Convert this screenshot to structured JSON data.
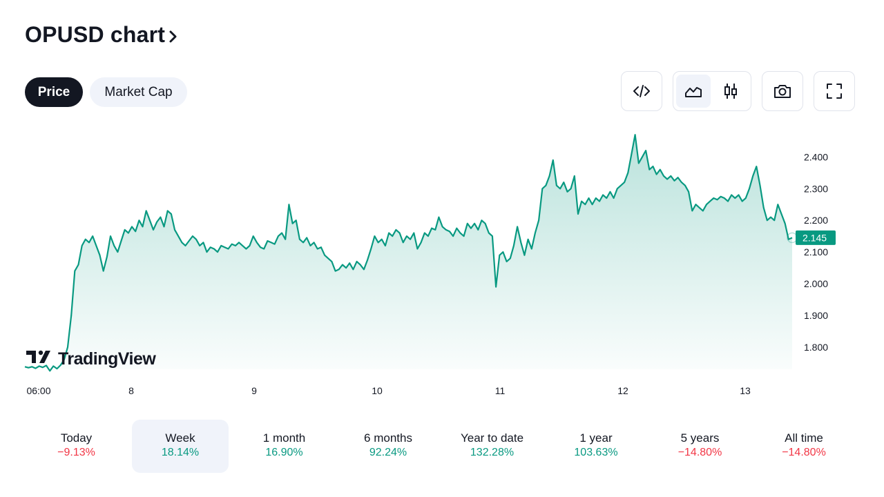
{
  "header": {
    "title": "OPUSD chart",
    "chevron_icon": "chevron-right-icon"
  },
  "tabs": [
    {
      "label": "Price",
      "active": true
    },
    {
      "label": "Market Cap",
      "active": false
    }
  ],
  "toolbar": {
    "embed_icon": "code-icon",
    "area_chart_icon": "area-chart-icon",
    "candles_icon": "candlestick-icon",
    "snapshot_icon": "camera-icon",
    "fullscreen_icon": "fullscreen-icon",
    "active_chart_style": "area"
  },
  "watermark": {
    "text": "TradingView"
  },
  "colors": {
    "line": "#089981",
    "negative": "#f23645",
    "dark": "#131722",
    "active_bg": "#f0f3fa"
  },
  "chart_data": {
    "type": "area",
    "x_tick_labels": [
      "06:00",
      "8",
      "9",
      "10",
      "11",
      "12",
      "13"
    ],
    "y_tick_labels": [
      "2.400",
      "2.300",
      "2.200",
      "2.100",
      "2.000",
      "1.900",
      "1.800"
    ],
    "ylim": [
      1.73,
      2.49
    ],
    "last_value": "2.145",
    "grid": false,
    "series": [
      {
        "values": [
          1.738,
          1.735,
          1.738,
          1.733,
          1.74,
          1.736,
          1.742,
          1.725,
          1.74,
          1.732,
          1.743,
          1.76,
          1.8,
          1.9,
          2.04,
          2.06,
          2.12,
          2.14,
          2.13,
          2.15,
          2.12,
          2.09,
          2.04,
          2.085,
          2.15,
          2.12,
          2.1,
          2.135,
          2.17,
          2.16,
          2.18,
          2.165,
          2.2,
          2.18,
          2.23,
          2.2,
          2.17,
          2.195,
          2.21,
          2.18,
          2.23,
          2.22,
          2.17,
          2.15,
          2.13,
          2.12,
          2.135,
          2.15,
          2.14,
          2.12,
          2.13,
          2.1,
          2.115,
          2.11,
          2.1,
          2.12,
          2.115,
          2.11,
          2.125,
          2.12,
          2.13,
          2.12,
          2.11,
          2.12,
          2.15,
          2.13,
          2.115,
          2.11,
          2.135,
          2.13,
          2.125,
          2.15,
          2.16,
          2.14,
          2.25,
          2.19,
          2.2,
          2.14,
          2.13,
          2.145,
          2.12,
          2.13,
          2.11,
          2.115,
          2.09,
          2.08,
          2.07,
          2.04,
          2.045,
          2.06,
          2.05,
          2.065,
          2.045,
          2.07,
          2.06,
          2.045,
          2.075,
          2.11,
          2.15,
          2.13,
          2.14,
          2.12,
          2.16,
          2.15,
          2.17,
          2.16,
          2.13,
          2.15,
          2.14,
          2.16,
          2.11,
          2.13,
          2.16,
          2.15,
          2.175,
          2.17,
          2.21,
          2.18,
          2.17,
          2.165,
          2.15,
          2.175,
          2.16,
          2.15,
          2.19,
          2.175,
          2.19,
          2.17,
          2.2,
          2.19,
          2.16,
          2.15,
          1.99,
          2.09,
          2.1,
          2.07,
          2.08,
          2.12,
          2.18,
          2.13,
          2.09,
          2.14,
          2.11,
          2.16,
          2.2,
          2.3,
          2.31,
          2.34,
          2.39,
          2.31,
          2.3,
          2.32,
          2.29,
          2.3,
          2.34,
          2.22,
          2.26,
          2.25,
          2.27,
          2.25,
          2.27,
          2.26,
          2.28,
          2.27,
          2.29,
          2.27,
          2.3,
          2.31,
          2.32,
          2.35,
          2.41,
          2.47,
          2.38,
          2.4,
          2.42,
          2.36,
          2.37,
          2.345,
          2.36,
          2.34,
          2.33,
          2.34,
          2.325,
          2.335,
          2.32,
          2.31,
          2.29,
          2.23,
          2.25,
          2.24,
          2.23,
          2.25,
          2.26,
          2.27,
          2.265,
          2.275,
          2.27,
          2.26,
          2.28,
          2.27,
          2.28,
          2.26,
          2.27,
          2.3,
          2.34,
          2.37,
          2.31,
          2.24,
          2.2,
          2.21,
          2.2,
          2.25,
          2.22,
          2.19,
          2.14,
          2.145
        ]
      }
    ]
  },
  "periods": [
    {
      "label": "Today",
      "value": "−9.13%",
      "sign": "negative",
      "active": false
    },
    {
      "label": "Week",
      "value": "18.14%",
      "sign": "positive",
      "active": true
    },
    {
      "label": "1 month",
      "value": "16.90%",
      "sign": "positive",
      "active": false
    },
    {
      "label": "6 months",
      "value": "92.24%",
      "sign": "positive",
      "active": false
    },
    {
      "label": "Year to date",
      "value": "132.28%",
      "sign": "positive",
      "active": false
    },
    {
      "label": "1 year",
      "value": "103.63%",
      "sign": "positive",
      "active": false
    },
    {
      "label": "5 years",
      "value": "−14.80%",
      "sign": "negative",
      "active": false
    },
    {
      "label": "All time",
      "value": "−14.80%",
      "sign": "negative",
      "active": false
    }
  ]
}
